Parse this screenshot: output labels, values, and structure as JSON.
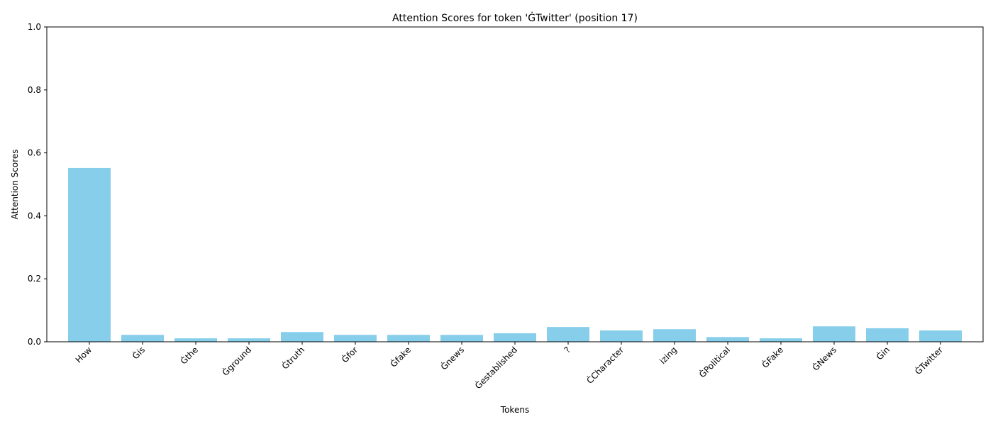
{
  "chart_data": {
    "type": "bar",
    "title": "Attention Scores for token 'ĠTwitter' (position 17)",
    "xlabel": "Tokens",
    "ylabel": "Attention Scores",
    "ylim": [
      0,
      1.0
    ],
    "yticks": [
      "0.0",
      "0.2",
      "0.4",
      "0.6",
      "0.8",
      "1.0"
    ],
    "grid": false,
    "bar_color": "#87ceeb",
    "categories": [
      "How",
      "Ġis",
      "Ġthe",
      "Ġground",
      "Ġtruth",
      "Ġfor",
      "Ġfake",
      "Ġnews",
      "Ġestablished",
      "?",
      "ĊCharacter",
      "izing",
      "ĠPolitical",
      "ĠFake",
      "ĠNews",
      "Ġin",
      "ĠTwitter"
    ],
    "values": [
      0.552,
      0.022,
      0.011,
      0.011,
      0.031,
      0.022,
      0.022,
      0.022,
      0.027,
      0.047,
      0.036,
      0.04,
      0.015,
      0.011,
      0.049,
      0.043,
      0.036
    ]
  }
}
